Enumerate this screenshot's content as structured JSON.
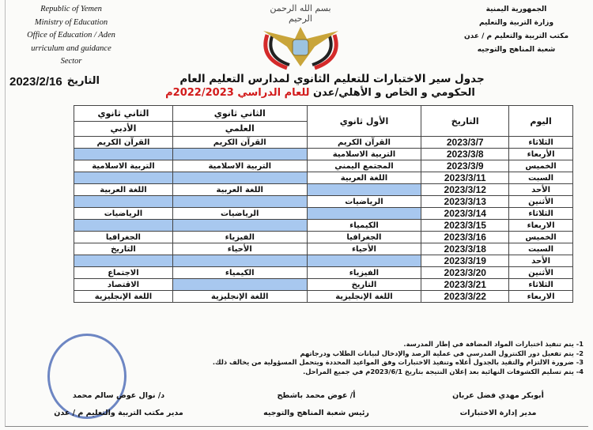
{
  "header_en": [
    "Republic of Yemen",
    "Ministry of Education",
    "Office of Education / Aden",
    "urriculum and guidance Sector"
  ],
  "header_ar": [
    "الجمهورية اليمنية",
    "وزارة التربية والتعليم",
    "مكتب التربية والتعليم م / عدن",
    "شعبة المناهج والتوجيه"
  ],
  "basmala": "بسم الله الرحمن الرحيم",
  "title_line1": "جدول سير الاختبارات للتعليم الثانوي لمدارس التعليم العام",
  "title_line2_black": "الحكومي و الخاص و الأهلي/عدن ",
  "title_line2_red": "للعام الدراسي 2022/2023م",
  "date_label": "التاريخ",
  "date_value": "2023/2/16",
  "colors": {
    "blank_cell": "#a8c8ef",
    "accent_red": "#d21a1a",
    "stamp_blue": "#3d5fb0"
  },
  "table": {
    "headers": {
      "day": "اليوم",
      "date": "التاريخ",
      "first": "الأول ثانوي",
      "second": "الثاني ثانوي",
      "science": "العلمي",
      "literary": "الأدبي"
    },
    "rows": [
      {
        "day": "الثلاثاء",
        "date": "2023/3/7",
        "first": "القرآن الكريم",
        "science": "القرآن الكريم",
        "literary": "القرآن الكريم"
      },
      {
        "day": "الأربعاء",
        "date": "2023/3/8",
        "first": "التربية الاسلامية",
        "science": null,
        "literary": null
      },
      {
        "day": "الخميس",
        "date": "2023/3/9",
        "first": "المجتمع اليمني",
        "science": "التربية الاسلامية",
        "literary": "التربية الاسلامية"
      },
      {
        "day": "السبت",
        "date": "2023/3/11",
        "first": "اللغة العربية",
        "science": null,
        "literary": null
      },
      {
        "day": "الأحد",
        "date": "2023/3/12",
        "first": null,
        "science": "اللغة العربية",
        "literary": "اللغة العربية"
      },
      {
        "day": "الأثنين",
        "date": "2023/3/13",
        "first": "الرياضيات",
        "science": null,
        "literary": null
      },
      {
        "day": "الثلاثاء",
        "date": "2023/3/14",
        "first": null,
        "science": "الرياضيات",
        "literary": "الرياضيات"
      },
      {
        "day": "الاربعاء",
        "date": "2023/3/15",
        "first": "الكيمياء",
        "science": null,
        "literary": null
      },
      {
        "day": "الخميس",
        "date": "2023/3/16",
        "first": "الجغرافيا",
        "science": "الفيزياء",
        "literary": "الجغرافيا"
      },
      {
        "day": "السبت",
        "date": "2023/3/18",
        "first": "الأحياء",
        "science": "الأحياء",
        "literary": "التاريخ"
      },
      {
        "day": "الأحد",
        "date": "2023/3/19",
        "first": null,
        "science": null,
        "literary": null
      },
      {
        "day": "الأثنين",
        "date": "2023/3/20",
        "first": "الفيزياء",
        "science": "الكيمياء",
        "literary": "الاجتماع"
      },
      {
        "day": "الثلاثاء",
        "date": "2023/3/21",
        "first": "التاريخ",
        "science": null,
        "literary": "الاقتصاد"
      },
      {
        "day": "الاربعاء",
        "date": "2023/3/22",
        "first": "اللغة الإنجليزية",
        "science": "اللغة الإنجليزية",
        "literary": "اللغة الإنجليزية"
      }
    ]
  },
  "notes": [
    "1- يتم تنفيذ اختبارات المواد المضافة في إطار المدرسة.",
    "2- يتم تفعيل دور الكنترول المدرسي في عملية الرصد والإدخال لبيانات الطلاب ودرجاتهم",
    "3- ضرورة الالتزام والتقيد بالجدول أعلاه وتنفيذ الاختبارات وفق المواعيد المحددة ويتحمل المسؤولية من يخالف ذلك.",
    "4- يتم تسليم الكشوفات النهائية بعد إعلان النتيجة بتاريخ 2023/6/1م في جميع المراحل."
  ],
  "signatures": [
    {
      "name": "أبوبكر مهدي فضل عربان",
      "title": "مدير إدارة الاختبارات"
    },
    {
      "name": "أ/ عوض محمد باشطح",
      "title": "رئيس شعبة المناهج والتوجيه"
    },
    {
      "name": "د/ نوال عوض سالم محمد",
      "title": "مدير مكتب التربية والتعليم م / عدن"
    }
  ]
}
